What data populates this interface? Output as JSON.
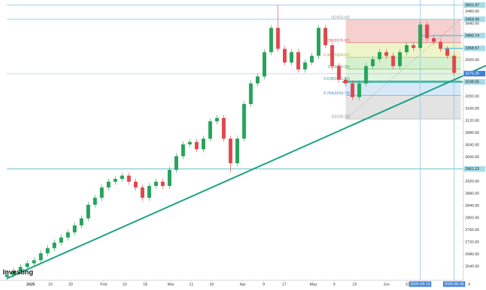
{
  "chart_data": {
    "type": "candlestick",
    "watermark": "Investing",
    "up_color": "#26a35a",
    "down_color": "#e0474c",
    "xlim": [
      0,
      66
    ],
    "ylim": [
      2594,
      3518
    ],
    "open": [
      2605,
      2612,
      2625,
      2638,
      2650,
      2660,
      2683,
      2700,
      2718,
      2735,
      2752,
      2775,
      2798,
      2843,
      2866,
      2900,
      2919,
      2928,
      2939,
      2919,
      2900,
      2866,
      2905,
      2919,
      2905,
      2958,
      3003,
      3042,
      3050,
      3026,
      3061,
      3118,
      3129,
      3061,
      2980,
      3061,
      3175,
      3243,
      3266,
      3346,
      3426,
      3357,
      3312,
      3346,
      3289,
      3312,
      3334,
      3426,
      3369,
      3300,
      3255,
      3243,
      3198,
      3243,
      3300,
      3323,
      3346,
      3334,
      3300,
      3346,
      3369,
      3360,
      3437,
      3392,
      3380,
      3357,
      3334
    ],
    "high": [
      2622,
      2635,
      2648,
      2660,
      2670,
      2693,
      2710,
      2728,
      2745,
      2762,
      2785,
      2808,
      2853,
      2876,
      2910,
      2929,
      2938,
      2949,
      2949,
      2929,
      2910,
      2915,
      2929,
      2929,
      2968,
      3013,
      3052,
      3060,
      3060,
      3071,
      3128,
      3139,
      3139,
      3071,
      3071,
      3185,
      3253,
      3276,
      3356,
      3436,
      3500,
      3367,
      3356,
      3356,
      3322,
      3344,
      3436,
      3436,
      3379,
      3310,
      3265,
      3253,
      3253,
      3310,
      3333,
      3356,
      3356,
      3344,
      3356,
      3379,
      3379,
      3447,
      3447,
      3402,
      3390,
      3367,
      3344
    ],
    "low": [
      2595,
      2602,
      2615,
      2628,
      2640,
      2650,
      2673,
      2690,
      2708,
      2725,
      2742,
      2765,
      2788,
      2833,
      2856,
      2890,
      2909,
      2918,
      2909,
      2890,
      2856,
      2856,
      2895,
      2895,
      2895,
      2948,
      2993,
      3032,
      3016,
      3016,
      3051,
      3108,
      3051,
      2950,
      2970,
      3051,
      3165,
      3233,
      3256,
      3336,
      3347,
      3302,
      3302,
      3279,
      3279,
      3302,
      3324,
      3359,
      3290,
      3245,
      3233,
      3188,
      3188,
      3233,
      3290,
      3313,
      3324,
      3290,
      3290,
      3336,
      3350,
      3350,
      3382,
      3370,
      3347,
      3324,
      3268
    ],
    "close": [
      2612,
      2625,
      2638,
      2650,
      2660,
      2683,
      2700,
      2718,
      2735,
      2752,
      2775,
      2798,
      2843,
      2866,
      2900,
      2919,
      2928,
      2939,
      2919,
      2900,
      2866,
      2905,
      2919,
      2905,
      2958,
      3003,
      3042,
      3050,
      3026,
      3061,
      3118,
      3129,
      3061,
      2980,
      3061,
      3175,
      3243,
      3266,
      3346,
      3426,
      3357,
      3312,
      3346,
      3289,
      3312,
      3334,
      3426,
      3369,
      3300,
      3255,
      3243,
      3198,
      3243,
      3300,
      3323,
      3346,
      3334,
      3300,
      3346,
      3369,
      3360,
      3437,
      3392,
      3380,
      3357,
      3334,
      3278
    ],
    "yticks": [
      {
        "value": 3480,
        "label": "3480.00"
      },
      {
        "value": 3440,
        "label": "3440.00"
      },
      {
        "value": 3320,
        "label": "3320.00"
      },
      {
        "value": 3200,
        "label": "3200.00"
      },
      {
        "value": 3160,
        "label": "3160.00"
      },
      {
        "value": 3120,
        "label": "3120.00"
      },
      {
        "value": 3080,
        "label": "3080.00"
      },
      {
        "value": 3040,
        "label": "3040.00"
      },
      {
        "value": 3000,
        "label": "3000.00"
      },
      {
        "value": 2920,
        "label": "2920.00"
      },
      {
        "value": 2880,
        "label": "2880.00"
      },
      {
        "value": 2840,
        "label": "2840.00"
      },
      {
        "value": 2800,
        "label": "2800.00"
      },
      {
        "value": 2760,
        "label": "2760.00"
      },
      {
        "value": 2720,
        "label": "2720.00"
      },
      {
        "value": 2680,
        "label": "2680.00"
      },
      {
        "value": 2640,
        "label": "2640.00"
      }
    ],
    "xticks": [
      {
        "value": 3.5,
        "label": "2025"
      },
      {
        "value": 6.4,
        "label": "10"
      },
      {
        "value": 9.4,
        "label": "20"
      },
      {
        "value": 14.3,
        "label": "Feb"
      },
      {
        "value": 17.4,
        "label": "10"
      },
      {
        "value": 20.4,
        "label": "18"
      },
      {
        "value": 24.2,
        "label": "Mar"
      },
      {
        "value": 27.2,
        "label": "11"
      },
      {
        "value": 30.2,
        "label": "18"
      },
      {
        "value": 34.8,
        "label": "Apr"
      },
      {
        "value": 37.9,
        "label": "9"
      },
      {
        "value": 40.9,
        "label": "17"
      },
      {
        "value": 45.2,
        "label": "May"
      },
      {
        "value": 48.3,
        "label": "9"
      },
      {
        "value": 51.3,
        "label": "19"
      },
      {
        "value": 56,
        "label": "Jun"
      },
      {
        "value": 59.1,
        "label": "10"
      },
      {
        "value": 68.2,
        "label": "4"
      }
    ],
    "date_markers": [
      {
        "value": 61,
        "label": "2025-06-16"
      },
      {
        "value": 66,
        "label": "2025-06-30"
      }
    ],
    "price_lines": [
      {
        "price": 3501.37,
        "start": 0,
        "width": 1,
        "color": "#8fd0e0"
      },
      {
        "price": 3454.49,
        "start": 0,
        "width": 1,
        "color": "#8fd0e0"
      },
      {
        "price": 3400.74,
        "start": 61,
        "width": 1.6,
        "color": "#6cc3d6"
      },
      {
        "price": 3358.57,
        "start": 64.5,
        "width": 1.6,
        "color": "#6cc3d6"
      },
      {
        "price": 3275.26,
        "start": 0,
        "width": 0.6,
        "color": "#7fb0e8"
      },
      {
        "price": 3248.05,
        "start": 49.5,
        "width": 2.6,
        "color": "#3fb6ad"
      },
      {
        "price": 2961.23,
        "start": 0,
        "width": 1.2,
        "color": "#6cc3d6"
      }
    ],
    "fib": {
      "start": 50,
      "end": 67,
      "levels": [
        {
          "price": 3454.49,
          "label": "0(3454.49)",
          "color": "#9a9a9a",
          "fill": "#f6cfcf"
        },
        {
          "price": 3376.97,
          "label": "0.236(3376.97)",
          "color": "#d0504f",
          "fill": "#eef4c9"
        },
        {
          "price": 3329.07,
          "label": "0.382(3329.07)",
          "color": "#9aa33a",
          "fill": "#d6f0cf"
        },
        {
          "price": 3290.35,
          "label": "0.5(3290.35)",
          "color": "#3ea34a",
          "fill": "#e2f4dd"
        },
        {
          "price": 3251.62,
          "label": "0.618(3251.62)",
          "color": "#2a9d8f",
          "fill": "#d7e9f7"
        },
        {
          "price": 3203.73,
          "label": "0.764(3203.73)",
          "color": "#3a7bd5",
          "fill": "#e3e3e3"
        },
        {
          "price": 3126.31,
          "label": "1(3126.31)",
          "color": "#888888",
          "fill": null
        }
      ]
    },
    "trendline": {
      "start": [
        0,
        2600
      ],
      "end": [
        66,
        3255
      ],
      "color": "#1fa385"
    }
  }
}
